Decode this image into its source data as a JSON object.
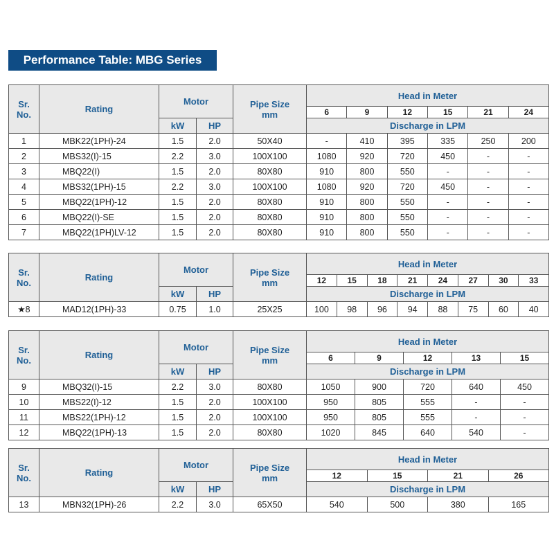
{
  "title": "Performance Table: MBG Series",
  "headers": {
    "sr_no": "Sr. No.",
    "rating": "Rating",
    "motor": "Motor",
    "kw": "kW",
    "hp": "HP",
    "pipe_size": "Pipe Size mm",
    "head": "Head in Meter",
    "discharge": "Discharge in LPM"
  },
  "tables": [
    {
      "heads": [
        "6",
        "9",
        "12",
        "15",
        "21",
        "24"
      ],
      "rows": [
        {
          "sr": "1",
          "rating": "MBK22(1PH)-24",
          "kw": "1.5",
          "hp": "2.0",
          "pipe": "50X40",
          "q": [
            "-",
            "410",
            "395",
            "335",
            "250",
            "200"
          ]
        },
        {
          "sr": "2",
          "rating": "MBS32(I)-15",
          "kw": "2.2",
          "hp": "3.0",
          "pipe": "100X100",
          "q": [
            "1080",
            "920",
            "720",
            "450",
            "-",
            "-"
          ]
        },
        {
          "sr": "3",
          "rating": "MBQ22(I)",
          "kw": "1.5",
          "hp": "2.0",
          "pipe": "80X80",
          "q": [
            "910",
            "800",
            "550",
            "-",
            "-",
            "-"
          ]
        },
        {
          "sr": "4",
          "rating": "MBS32(1PH)-15",
          "kw": "2.2",
          "hp": "3.0",
          "pipe": "100X100",
          "q": [
            "1080",
            "920",
            "720",
            "450",
            "-",
            "-"
          ]
        },
        {
          "sr": "5",
          "rating": "MBQ22(1PH)-12",
          "kw": "1.5",
          "hp": "2.0",
          "pipe": "80X80",
          "q": [
            "910",
            "800",
            "550",
            "-",
            "-",
            "-"
          ]
        },
        {
          "sr": "6",
          "rating": "MBQ22(I)-SE",
          "kw": "1.5",
          "hp": "2.0",
          "pipe": "80X80",
          "q": [
            "910",
            "800",
            "550",
            "-",
            "-",
            "-"
          ]
        },
        {
          "sr": "7",
          "rating": "MBQ22(1PH)LV-12",
          "kw": "1.5",
          "hp": "2.0",
          "pipe": "80X80",
          "q": [
            "910",
            "800",
            "550",
            "-",
            "-",
            "-"
          ]
        }
      ]
    },
    {
      "heads": [
        "12",
        "15",
        "18",
        "21",
        "24",
        "27",
        "30",
        "33"
      ],
      "rows": [
        {
          "sr": "★8",
          "rating": "MAD12(1PH)-33",
          "kw": "0.75",
          "hp": "1.0",
          "pipe": "25X25",
          "q": [
            "100",
            "98",
            "96",
            "94",
            "88",
            "75",
            "60",
            "40"
          ]
        }
      ]
    },
    {
      "heads": [
        "6",
        "9",
        "12",
        "13",
        "15"
      ],
      "rows": [
        {
          "sr": "9",
          "rating": "MBQ32(I)-15",
          "kw": "2.2",
          "hp": "3.0",
          "pipe": "80X80",
          "q": [
            "1050",
            "900",
            "720",
            "640",
            "450"
          ]
        },
        {
          "sr": "10",
          "rating": "MBS22(I)-12",
          "kw": "1.5",
          "hp": "2.0",
          "pipe": "100X100",
          "q": [
            "950",
            "805",
            "555",
            "-",
            "-"
          ]
        },
        {
          "sr": "11",
          "rating": "MBS22(1PH)-12",
          "kw": "1.5",
          "hp": "2.0",
          "pipe": "100X100",
          "q": [
            "950",
            "805",
            "555",
            "-",
            "-"
          ]
        },
        {
          "sr": "12",
          "rating": "MBQ22(1PH)-13",
          "kw": "1.5",
          "hp": "2.0",
          "pipe": "80X80",
          "q": [
            "1020",
            "845",
            "640",
            "540",
            "-"
          ]
        }
      ]
    },
    {
      "heads": [
        "12",
        "15",
        "21",
        "26"
      ],
      "rows": [
        {
          "sr": "13",
          "rating": "MBN32(1PH)-26",
          "kw": "2.2",
          "hp": "3.0",
          "pipe": "65X50",
          "q": [
            "540",
            "500",
            "380",
            "165"
          ]
        }
      ]
    }
  ],
  "colors": {
    "title_bg": "#0f4c85",
    "header_text": "#1f5f96",
    "header_bg": "#e9e9e9"
  }
}
